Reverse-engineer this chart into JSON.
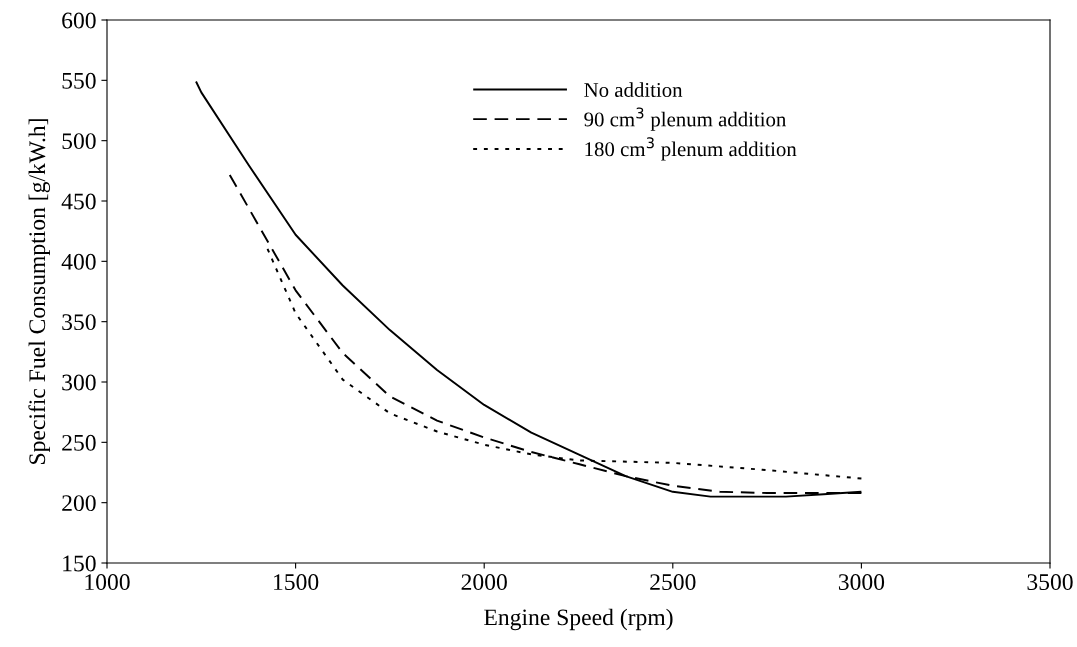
{
  "chart_data": {
    "type": "line",
    "xlabel": "Engine Speed (rpm)",
    "ylabel": "Specific Fuel Consumption [g/kW.h]",
    "xlim": [
      1000,
      3500
    ],
    "xticks": [
      1000,
      1500,
      2000,
      2500,
      3000,
      3500
    ],
    "ylim": [
      150,
      600
    ],
    "yticks": [
      150,
      200,
      250,
      300,
      350,
      400,
      450,
      500,
      550,
      600
    ],
    "grid": false,
    "legend": "top",
    "marker": "none",
    "series": [
      {
        "name": "No addition",
        "color": "#000000",
        "line_style": "solid",
        "x": [
          1236,
          1250,
          1375,
          1500,
          1625,
          1750,
          1875,
          2000,
          2125,
          2250,
          2375,
          2500,
          2600,
          2700,
          2800,
          2900,
          3000
        ],
        "values": [
          549,
          540,
          480,
          422,
          380,
          343,
          310,
          281,
          258,
          240,
          222,
          209,
          205,
          205,
          205,
          207,
          209
        ]
      },
      {
        "name": "90 cm$^{3}$ plenum addition",
        "color": "#000000",
        "line_style": "dashed",
        "x": [
          1321,
          1500,
          1625,
          1750,
          1875,
          2000,
          2125,
          2250,
          2375,
          2500,
          2625,
          2750,
          3000
        ],
        "values": [
          474,
          376,
          324,
          288,
          268,
          254,
          242,
          232,
          222,
          214,
          209,
          208,
          208
        ]
      },
      {
        "name": "180 cm$^{3}$ plenum addition",
        "color": "#000000",
        "line_style": "dotted",
        "x": [
          1419,
          1500,
          1625,
          1750,
          1875,
          2000,
          2125,
          2250,
          2500,
          2750,
          3000
        ],
        "values": [
          415,
          357,
          302,
          274,
          259,
          248,
          240,
          235,
          233,
          227,
          220
        ]
      }
    ]
  }
}
